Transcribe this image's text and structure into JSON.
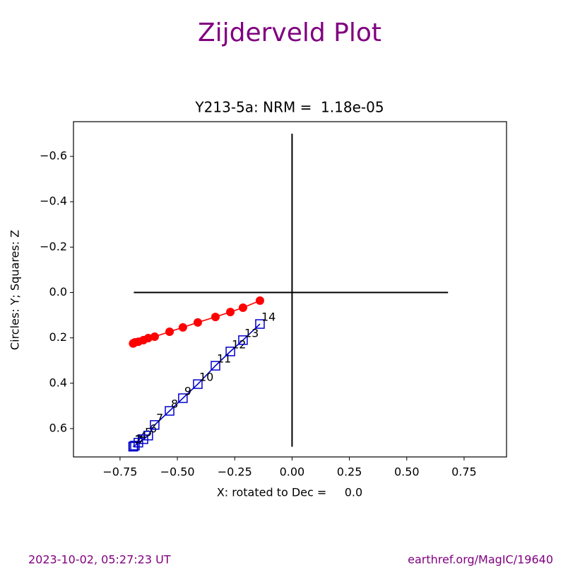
{
  "chart_data": {
    "type": "zijderveld",
    "suptitle": "Zijderveld Plot",
    "title": "Y213-5a: NRM =  1.18e-05",
    "xlabel": "X: rotated to Dec =     0.0",
    "ylabel": "Circles: Y; Squares: Z",
    "footer_left": "2023-10-02, 05:27:23 UT",
    "footer_right": "earthref.org/MagIC/19640",
    "xlim": [
      -0.953,
      0.935
    ],
    "ylim": [
      -0.753,
      0.725
    ],
    "y_inverted": true,
    "xticks": [
      {
        "value": -0.75,
        "label": "−0.75"
      },
      {
        "value": -0.5,
        "label": "−0.50"
      },
      {
        "value": -0.25,
        "label": "−0.25"
      },
      {
        "value": 0,
        "label": "0.00"
      },
      0.25,
      {
        "value": 0.5,
        "label": "0.50"
      },
      0.75
    ],
    "yticks": [
      {
        "value": -0.6,
        "label": "−0.6"
      },
      {
        "value": -0.4,
        "label": "−0.4"
      },
      {
        "value": -0.2,
        "label": "−0.2"
      },
      {
        "value": 0,
        "label": "0.0"
      },
      0.2,
      0.4,
      0.6
    ],
    "cross": {
      "x": [
        -0.69,
        0.68
      ],
      "y": [
        -0.7,
        0.68
      ]
    },
    "x": [
      -0.693,
      -0.691,
      -0.685,
      -0.67,
      -0.648,
      -0.627,
      -0.599,
      -0.534,
      -0.476,
      -0.411,
      -0.334,
      -0.269,
      -0.214,
      -0.14
    ],
    "step_labels": [
      "1",
      "2",
      "3",
      "4",
      "5",
      "6",
      "7",
      "8",
      "9",
      "10",
      "11",
      "12",
      "13",
      "14"
    ],
    "series": [
      {
        "name": "Y",
        "marker": "circle",
        "color": "#ff0000",
        "values": [
          0.225,
          0.223,
          0.22,
          0.217,
          0.21,
          0.201,
          0.195,
          0.173,
          0.154,
          0.132,
          0.108,
          0.086,
          0.067,
          0.036
        ]
      },
      {
        "name": "Z",
        "marker": "square",
        "color": "#0000cc",
        "values": [
          0.68,
          0.678,
          0.675,
          0.662,
          0.647,
          0.631,
          0.584,
          0.522,
          0.466,
          0.404,
          0.323,
          0.26,
          0.21,
          0.139
        ]
      }
    ]
  }
}
